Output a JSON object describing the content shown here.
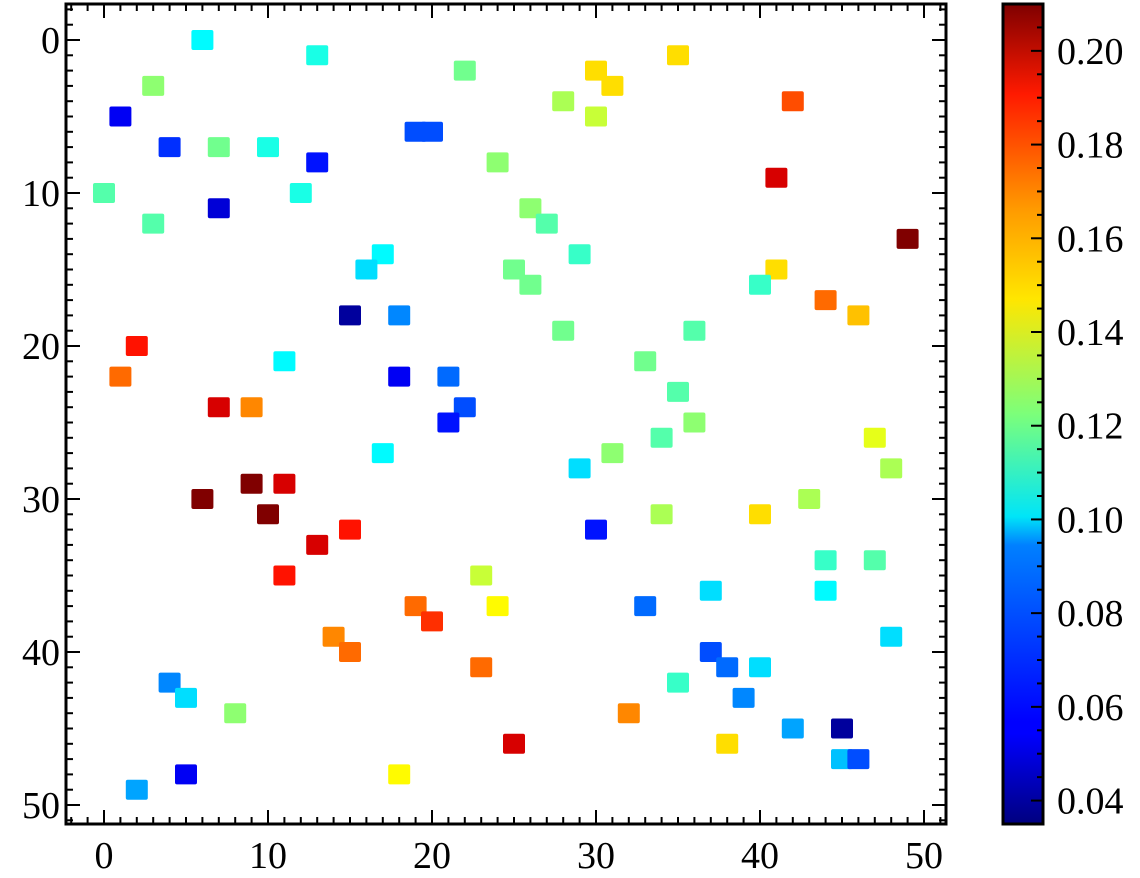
{
  "chart_data": {
    "type": "heatmap",
    "title": "",
    "xlabel": "",
    "ylabel": "",
    "xlim": [
      -2.5,
      51.5
    ],
    "ylim": [
      51.5,
      -2.5
    ],
    "y_inverted": true,
    "x_ticks": [
      0,
      10,
      20,
      30,
      40,
      50
    ],
    "y_ticks": [
      0,
      10,
      20,
      30,
      40,
      50
    ],
    "x_tick_labels": [
      "0",
      "10",
      "20",
      "30",
      "40",
      "50"
    ],
    "y_tick_labels": [
      "0",
      "10",
      "20",
      "30",
      "40",
      "50"
    ],
    "grid": false,
    "colormap": "jet",
    "colorbar": {
      "range": [
        0.035,
        0.21
      ],
      "ticks": [
        0.04,
        0.06,
        0.08,
        0.1,
        0.12,
        0.14,
        0.16,
        0.18,
        0.2
      ],
      "tick_labels": [
        "0.04",
        "0.06",
        "0.08",
        "0.10",
        "0.12",
        "0.14",
        "0.16",
        "0.18",
        "0.20"
      ]
    },
    "cells": [
      {
        "x": 6,
        "y": 0,
        "v": 0.1
      },
      {
        "x": 13,
        "y": 1,
        "v": 0.105
      },
      {
        "x": 35,
        "y": 1,
        "v": 0.15
      },
      {
        "x": 22,
        "y": 2,
        "v": 0.12
      },
      {
        "x": 30,
        "y": 2,
        "v": 0.15
      },
      {
        "x": 3,
        "y": 3,
        "v": 0.125
      },
      {
        "x": 31,
        "y": 3,
        "v": 0.15
      },
      {
        "x": 1,
        "y": 5,
        "v": 0.055
      },
      {
        "x": 28,
        "y": 4,
        "v": 0.13
      },
      {
        "x": 42,
        "y": 4,
        "v": 0.175
      },
      {
        "x": 30,
        "y": 5,
        "v": 0.135
      },
      {
        "x": 19,
        "y": 6,
        "v": 0.07
      },
      {
        "x": 20,
        "y": 6,
        "v": 0.07
      },
      {
        "x": 4,
        "y": 7,
        "v": 0.065
      },
      {
        "x": 7,
        "y": 7,
        "v": 0.12
      },
      {
        "x": 10,
        "y": 7,
        "v": 0.105
      },
      {
        "x": 13,
        "y": 8,
        "v": 0.06
      },
      {
        "x": 24,
        "y": 8,
        "v": 0.125
      },
      {
        "x": 41,
        "y": 9,
        "v": 0.195
      },
      {
        "x": 0,
        "y": 10,
        "v": 0.115
      },
      {
        "x": 12,
        "y": 10,
        "v": 0.105
      },
      {
        "x": 7,
        "y": 11,
        "v": 0.05
      },
      {
        "x": 26,
        "y": 11,
        "v": 0.125
      },
      {
        "x": 3,
        "y": 12,
        "v": 0.115
      },
      {
        "x": 27,
        "y": 12,
        "v": 0.115
      },
      {
        "x": 49,
        "y": 13,
        "v": 0.21
      },
      {
        "x": 17,
        "y": 14,
        "v": 0.1
      },
      {
        "x": 29,
        "y": 14,
        "v": 0.11
      },
      {
        "x": 16,
        "y": 15,
        "v": 0.095
      },
      {
        "x": 25,
        "y": 15,
        "v": 0.12
      },
      {
        "x": 41,
        "y": 15,
        "v": 0.15
      },
      {
        "x": 26,
        "y": 16,
        "v": 0.12
      },
      {
        "x": 40,
        "y": 16,
        "v": 0.11
      },
      {
        "x": 44,
        "y": 17,
        "v": 0.17
      },
      {
        "x": 15,
        "y": 18,
        "v": 0.04
      },
      {
        "x": 18,
        "y": 18,
        "v": 0.08
      },
      {
        "x": 46,
        "y": 18,
        "v": 0.155
      },
      {
        "x": 28,
        "y": 19,
        "v": 0.12
      },
      {
        "x": 36,
        "y": 19,
        "v": 0.115
      },
      {
        "x": 2,
        "y": 20,
        "v": 0.185
      },
      {
        "x": 11,
        "y": 21,
        "v": 0.1
      },
      {
        "x": 33,
        "y": 21,
        "v": 0.12
      },
      {
        "x": 1,
        "y": 22,
        "v": 0.17
      },
      {
        "x": 18,
        "y": 22,
        "v": 0.055
      },
      {
        "x": 21,
        "y": 22,
        "v": 0.075
      },
      {
        "x": 35,
        "y": 23,
        "v": 0.115
      },
      {
        "x": 7,
        "y": 24,
        "v": 0.195
      },
      {
        "x": 9,
        "y": 24,
        "v": 0.165
      },
      {
        "x": 22,
        "y": 24,
        "v": 0.07
      },
      {
        "x": 21,
        "y": 25,
        "v": 0.06
      },
      {
        "x": 36,
        "y": 25,
        "v": 0.125
      },
      {
        "x": 34,
        "y": 26,
        "v": 0.115
      },
      {
        "x": 47,
        "y": 26,
        "v": 0.14
      },
      {
        "x": 17,
        "y": 27,
        "v": 0.1
      },
      {
        "x": 31,
        "y": 27,
        "v": 0.125
      },
      {
        "x": 29,
        "y": 28,
        "v": 0.095
      },
      {
        "x": 48,
        "y": 28,
        "v": 0.13
      },
      {
        "x": 9,
        "y": 29,
        "v": 0.21
      },
      {
        "x": 11,
        "y": 29,
        "v": 0.195
      },
      {
        "x": 6,
        "y": 30,
        "v": 0.21
      },
      {
        "x": 43,
        "y": 30,
        "v": 0.13
      },
      {
        "x": 10,
        "y": 31,
        "v": 0.21
      },
      {
        "x": 34,
        "y": 31,
        "v": 0.13
      },
      {
        "x": 40,
        "y": 31,
        "v": 0.15
      },
      {
        "x": 15,
        "y": 32,
        "v": 0.185
      },
      {
        "x": 30,
        "y": 32,
        "v": 0.06
      },
      {
        "x": 13,
        "y": 33,
        "v": 0.195
      },
      {
        "x": 44,
        "y": 34,
        "v": 0.11
      },
      {
        "x": 47,
        "y": 34,
        "v": 0.115
      },
      {
        "x": 11,
        "y": 35,
        "v": 0.185
      },
      {
        "x": 23,
        "y": 35,
        "v": 0.135
      },
      {
        "x": 37,
        "y": 36,
        "v": 0.095
      },
      {
        "x": 44,
        "y": 36,
        "v": 0.1
      },
      {
        "x": 19,
        "y": 37,
        "v": 0.17
      },
      {
        "x": 24,
        "y": 37,
        "v": 0.145
      },
      {
        "x": 33,
        "y": 37,
        "v": 0.075
      },
      {
        "x": 20,
        "y": 38,
        "v": 0.18
      },
      {
        "x": 14,
        "y": 39,
        "v": 0.165
      },
      {
        "x": 48,
        "y": 39,
        "v": 0.095
      },
      {
        "x": 15,
        "y": 40,
        "v": 0.17
      },
      {
        "x": 37,
        "y": 40,
        "v": 0.07
      },
      {
        "x": 23,
        "y": 41,
        "v": 0.17
      },
      {
        "x": 38,
        "y": 41,
        "v": 0.075
      },
      {
        "x": 40,
        "y": 41,
        "v": 0.095
      },
      {
        "x": 4,
        "y": 42,
        "v": 0.08
      },
      {
        "x": 35,
        "y": 42,
        "v": 0.11
      },
      {
        "x": 5,
        "y": 43,
        "v": 0.095
      },
      {
        "x": 39,
        "y": 43,
        "v": 0.08
      },
      {
        "x": 8,
        "y": 44,
        "v": 0.125
      },
      {
        "x": 32,
        "y": 44,
        "v": 0.165
      },
      {
        "x": 42,
        "y": 45,
        "v": 0.085
      },
      {
        "x": 45,
        "y": 45,
        "v": 0.04
      },
      {
        "x": 25,
        "y": 46,
        "v": 0.195
      },
      {
        "x": 38,
        "y": 46,
        "v": 0.15
      },
      {
        "x": 45,
        "y": 47,
        "v": 0.09
      },
      {
        "x": 46,
        "y": 47,
        "v": 0.07
      },
      {
        "x": 5,
        "y": 48,
        "v": 0.055
      },
      {
        "x": 18,
        "y": 48,
        "v": 0.145
      },
      {
        "x": 2,
        "y": 49,
        "v": 0.085
      }
    ]
  }
}
